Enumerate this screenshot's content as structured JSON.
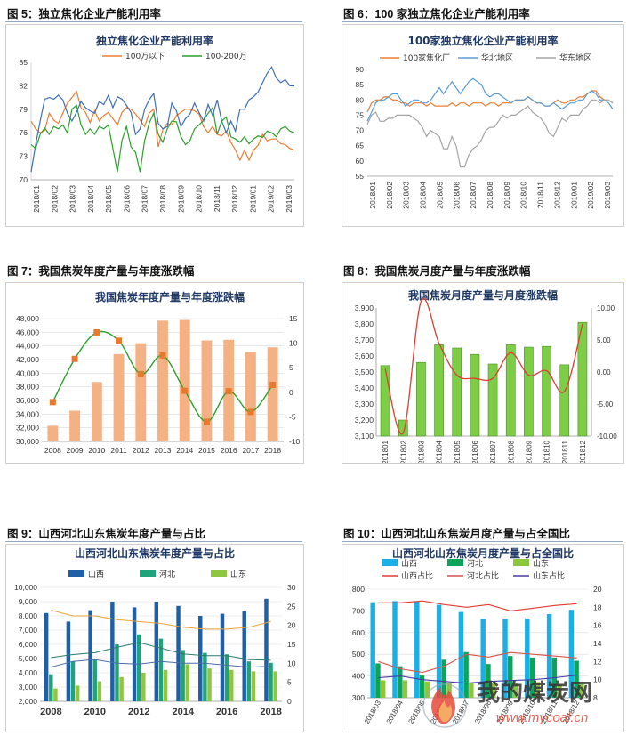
{
  "figures": [
    {
      "id": "fig5",
      "label": "图 5：独立焦化企业产能利用率"
    },
    {
      "id": "fig6",
      "label": "图 6：100 家独立焦化企业产能利用率"
    },
    {
      "id": "fig7",
      "label": "图 7：我国焦炭年度产量与年度涨跌幅"
    },
    {
      "id": "fig8",
      "label": "图 8：我国焦炭月度产量与年度涨跌幅"
    },
    {
      "id": "fig9",
      "label": "图 9：山西河北山东焦炭年度产量与占比"
    },
    {
      "id": "fig10",
      "label": "图 10：山西河北山东焦炭月度产量与占全国比"
    }
  ],
  "watermark": {
    "text": "我的煤炭网",
    "url": "www.mycoal.cn"
  },
  "colors": {
    "blue": "#3d6fb6",
    "green": "#2ca02c",
    "orange": "#ed7d31",
    "gray": "#a5a5a5",
    "lightblue": "#5b9bd5",
    "bar_orange": "#f4b183",
    "bar_green": "#7dcd47",
    "darkblue": "#1f5fa8",
    "teal": "#1fa37a",
    "lime": "#8dc63f",
    "cyan": "#1ab0e6",
    "red": "#e03c31",
    "purple": "#4b3aa6"
  },
  "chart_data": [
    {
      "id": "fig5",
      "type": "line",
      "title": "独立焦化企业产能利用率",
      "x_ticks": [
        "2018/01",
        "2018/02",
        "2018/03",
        "2018/04",
        "2018/05",
        "2018/06",
        "2018/07",
        "2018/08",
        "2018/09",
        "2018/10",
        "2018/11",
        "2018/12",
        "2019/01",
        "2019/02",
        "2019/03"
      ],
      "ylim": [
        70,
        85
      ],
      "y_ticks": [
        70,
        73,
        76,
        79,
        82,
        85
      ],
      "series": [
        {
          "name": "100万以下",
          "color": "#ed7d31",
          "values": [
            77.5,
            76.5,
            76,
            76.3,
            78.5,
            77.6,
            77.2,
            78.5,
            79.8,
            80.5,
            81.3,
            79.2,
            78.6,
            77.3,
            78.8,
            77.5,
            78.2,
            78.6,
            77.8,
            77.0,
            78.6,
            79.2,
            79.0,
            78.4,
            77.6,
            76.8,
            78.5,
            79.0,
            74.2,
            76.4,
            77.2,
            77.0,
            78.2,
            78.6,
            79.0,
            79.0,
            78.8,
            78.4,
            76.8,
            76.0,
            76.8,
            75.8,
            75.6,
            76.2,
            74.8,
            73.8,
            72.5,
            73.8,
            72.5,
            73.8,
            74.4,
            75.8,
            75.0,
            75.2,
            75.2,
            74.6,
            74.5,
            74.0,
            73.8
          ]
        },
        {
          "name": "100-200万",
          "color": "#2ca02c",
          "values": [
            74.5,
            74.0,
            75.8,
            76.6,
            75.8,
            76.8,
            76.5,
            77.0,
            76.0,
            79.0,
            79.5,
            77.0,
            75.8,
            76.5,
            75.8,
            76.8,
            76.5,
            77.0,
            74.0,
            71.0,
            75.0,
            76.8,
            74.2,
            73.5,
            71.0,
            75.0,
            77.2,
            78.5,
            75.8,
            74.8,
            76.5,
            77.5,
            77.4,
            75.5,
            74.5,
            75.0,
            76.5,
            77.0,
            77.6,
            78.5,
            79.2,
            75.8,
            77.5,
            78.0,
            75.5,
            75.2,
            74.8,
            75.5,
            74.6,
            75.2,
            75.6,
            75.4,
            76.2,
            76.0,
            75.5,
            76.5,
            76.8,
            76.2,
            76.0
          ]
        },
        {
          "name": "",
          "color": "#3d6fb6",
          "values": [
            71.0,
            74.5,
            77.5,
            80.3,
            80.5,
            80.3,
            80.8,
            80.2,
            78.5,
            77.5,
            78.6,
            80.0,
            79.2,
            78.8,
            78.5,
            80.0,
            79.6,
            80.8,
            79.2,
            80.6,
            80.3,
            79.5,
            78.6,
            75.8,
            76.5,
            79.0,
            80.2,
            81.0,
            77.2,
            76.5,
            76.8,
            79.8,
            78.8,
            76.8,
            77.8,
            78.4,
            79.8,
            78.6,
            77.5,
            79.6,
            78.2,
            80.2,
            77.5,
            76.0,
            77.5,
            76.2,
            79.0,
            79.0,
            80.2,
            80.6,
            81.2,
            82.4,
            83.6,
            84.4,
            83.0,
            82.4,
            82.8,
            82.0,
            82.0
          ]
        }
      ]
    },
    {
      "id": "fig6",
      "type": "line",
      "title": "100家独立焦化企业产能利用率",
      "x_ticks": [
        "2018/01",
        "2018/02",
        "2018/03",
        "2018/04",
        "2018/05",
        "2018/06",
        "2018/07",
        "2018/08",
        "2018/09",
        "2018/10",
        "2018/11",
        "2018/12",
        "2019/01",
        "2019/02",
        "2019/03"
      ],
      "ylim": [
        55,
        90
      ],
      "y_ticks": [
        55,
        60,
        65,
        70,
        75,
        80,
        85,
        90
      ],
      "series": [
        {
          "name": "100家焦化厂",
          "color": "#ed7d31",
          "values": [
            76,
            79,
            80,
            80,
            81,
            81,
            80,
            80,
            79,
            79,
            78,
            79,
            79,
            79,
            78,
            79,
            78,
            78,
            78,
            78,
            79,
            78,
            79,
            79,
            78,
            79,
            79,
            79,
            78,
            79,
            79,
            78,
            79,
            79,
            79,
            80,
            80,
            80,
            81,
            80,
            79,
            79,
            78,
            78,
            79,
            80,
            79,
            79,
            80,
            80,
            81,
            81,
            82,
            83,
            83,
            81,
            80,
            80,
            79
          ]
        },
        {
          "name": "华北地区",
          "color": "#5b9bd5",
          "values": [
            73,
            76,
            79,
            80,
            80,
            81,
            82,
            82,
            80,
            78,
            79,
            80,
            80,
            79,
            79,
            80,
            82,
            84,
            82,
            84,
            86,
            84,
            82,
            84,
            86,
            87,
            86,
            85,
            82,
            81,
            82,
            82,
            81,
            80,
            79,
            80,
            80,
            80,
            81,
            80,
            79,
            79,
            78,
            78,
            79,
            78,
            77,
            78,
            79,
            79,
            80,
            80,
            82,
            83,
            82,
            80,
            80,
            79,
            77
          ]
        },
        {
          "name": "华东地区",
          "color": "#a5a5a5",
          "values": [
            72,
            75,
            76,
            73,
            73,
            74,
            74,
            75,
            75,
            75,
            75,
            74,
            73,
            71,
            68,
            70,
            69,
            68,
            64,
            64,
            68,
            65,
            58,
            58,
            62,
            64,
            65,
            67,
            70,
            71,
            71,
            73,
            75,
            74,
            75,
            75,
            76,
            77,
            78,
            76,
            75,
            74,
            72,
            69,
            68,
            71,
            74,
            73,
            75,
            75,
            75,
            77,
            78,
            80,
            80,
            79,
            80,
            80,
            79
          ]
        }
      ]
    },
    {
      "id": "fig7",
      "type": "bar",
      "title": "我国焦炭年度产量与年度涨跌幅",
      "categories": [
        "2008",
        "2009",
        "2010",
        "2011",
        "2012",
        "2013",
        "2014",
        "2015",
        "2016",
        "2017",
        "2018"
      ],
      "ylim": [
        30000,
        48000
      ],
      "y_ticks": [
        30000,
        32000,
        34000,
        36000,
        38000,
        40000,
        42000,
        44000,
        46000,
        48000
      ],
      "y2lim": [
        -10,
        15
      ],
      "y2_ticks": [
        -10,
        -5,
        0,
        5,
        10,
        15
      ],
      "series": [
        {
          "name": "焦炭年度产量",
          "color": "#f4b183",
          "values": [
            32300,
            34500,
            38700,
            42800,
            44400,
            47700,
            47800,
            44800,
            44900,
            43100,
            43800
          ]
        },
        {
          "name": "年度涨跌幅",
          "color": "#2ca02c",
          "marker_color": "#e87a2e",
          "axis": "y2",
          "values": [
            -2,
            6.8,
            12.2,
            10.5,
            3.7,
            7.5,
            0.3,
            -6,
            0.2,
            -4,
            1.5
          ]
        }
      ]
    },
    {
      "id": "fig8",
      "type": "bar",
      "title": "我国焦炭月度产量与月度涨跌幅",
      "categories": [
        "201801",
        "201802",
        "201803",
        "201804",
        "201805",
        "201806",
        "201807",
        "201808",
        "201809",
        "201810",
        "201811",
        "201812"
      ],
      "ylim": [
        3100,
        3900
      ],
      "y_ticks": [
        3100,
        3200,
        3300,
        3400,
        3500,
        3600,
        3700,
        3800,
        3900
      ],
      "y2lim": [
        -10,
        10
      ],
      "y2_ticks": [
        -10,
        -5,
        0,
        5,
        10
      ],
      "series": [
        {
          "name": "焦炭月度产量",
          "color": "#7dcd47",
          "values": [
            3540,
            3200,
            3560,
            3670,
            3650,
            3610,
            3550,
            3670,
            3655,
            3660,
            3545,
            3810
          ]
        },
        {
          "name": "月度涨跌幅",
          "color": "#e03c31",
          "axis": "y2",
          "values": [
            0.5,
            -9.5,
            11,
            4.5,
            -0.5,
            -1,
            -1,
            3,
            -0.5,
            0.2,
            -3,
            7.5
          ]
        }
      ]
    },
    {
      "id": "fig9",
      "type": "bar",
      "title": "山西河北山东焦炭年度产量与占比",
      "categories": [
        "2008",
        "2009",
        "2010",
        "2011",
        "2012",
        "2013",
        "2014",
        "2015",
        "2016",
        "2017",
        "2018"
      ],
      "x_ticks": [
        "2008",
        "2010",
        "2012",
        "2014",
        "2016",
        "2018"
      ],
      "ylim": [
        2000,
        10000
      ],
      "y_ticks": [
        2000,
        3000,
        4000,
        5000,
        6000,
        7000,
        8000,
        9000,
        10000
      ],
      "y2lim": [
        0,
        30
      ],
      "y2_ticks": [
        0,
        5,
        10,
        15,
        20,
        25,
        30
      ],
      "series": [
        {
          "name": "山西",
          "color": "#1f5fa8",
          "values": [
            8200,
            7600,
            8400,
            9000,
            8600,
            9000,
            8700,
            8000,
            8150,
            8350,
            9200
          ]
        },
        {
          "name": "河北",
          "color": "#1fa37a",
          "values": [
            3900,
            4800,
            5000,
            6000,
            6700,
            6400,
            5600,
            5400,
            5300,
            4800,
            4700
          ]
        },
        {
          "name": "山东",
          "color": "#8dc63f",
          "values": [
            2900,
            3100,
            3400,
            3700,
            4000,
            4200,
            4600,
            4300,
            4200,
            4100,
            4100
          ]
        },
        {
          "name": "",
          "color": "#e8a33a",
          "axis": "y2",
          "values": [
            24,
            22.5,
            22.5,
            21.5,
            21,
            20.5,
            19.5,
            19,
            19,
            19.5,
            21
          ]
        },
        {
          "name": "",
          "color": "#2a7a6e",
          "axis": "y2",
          "values": [
            11.5,
            12.3,
            12.8,
            14.2,
            15.5,
            14.0,
            12.5,
            12.0,
            12.0,
            11.0,
            10.8
          ]
        },
        {
          "name": "",
          "color": "#4b6ea8",
          "axis": "y2",
          "values": [
            9.0,
            10.5,
            11.0,
            10.0,
            9.8,
            10.5,
            10.0,
            10.0,
            9.5,
            9.0,
            9.2
          ]
        }
      ]
    },
    {
      "id": "fig10",
      "type": "bar",
      "title": "山西河北山东焦炭月度产量与占全国比",
      "categories": [
        "2018/03",
        "2018/04",
        "2018/05",
        "2018/06",
        "2018/07",
        "2018/08",
        "2018/09",
        "2018/10",
        "2018/11",
        "2018/12"
      ],
      "ylim": [
        300,
        800
      ],
      "y_ticks": [
        300,
        400,
        500,
        600,
        700,
        800
      ],
      "y2lim": [
        8,
        20
      ],
      "y2_ticks": [
        8,
        10,
        12,
        14,
        16,
        18,
        20
      ],
      "series": [
        {
          "name": "山西",
          "color": "#1ab0e6",
          "values": [
            740,
            745,
            745,
            728,
            695,
            662,
            665,
            665,
            685,
            705
          ]
        },
        {
          "name": "河北",
          "color": "#0aa55a",
          "values": [
            458,
            445,
            402,
            475,
            510,
            455,
            492,
            485,
            485,
            470
          ]
        },
        {
          "name": "山东",
          "color": "#8dc63f",
          "values": [
            380,
            380,
            375,
            370,
            368,
            368,
            370,
            372,
            362,
            365
          ]
        },
        {
          "name": "山西占比",
          "color": "#e03c31",
          "axis": "y2",
          "values": [
            18.5,
            18.5,
            18.7,
            18.3,
            18.0,
            18.3,
            17.6,
            17.9,
            18.2,
            18.4
          ]
        },
        {
          "name": "河北占比",
          "color": "#d9534f",
          "axis": "y2",
          "values": [
            12.0,
            11.2,
            10.8,
            11.5,
            12.8,
            12.5,
            13.0,
            12.8,
            12.6,
            12.4
          ]
        },
        {
          "name": "山东占比",
          "color": "#4b3aa6",
          "axis": "y2",
          "values": [
            10.2,
            10.4,
            10.0,
            9.8,
            9.6,
            9.8,
            9.9,
            10.0,
            10.2,
            10.5
          ]
        }
      ]
    }
  ]
}
